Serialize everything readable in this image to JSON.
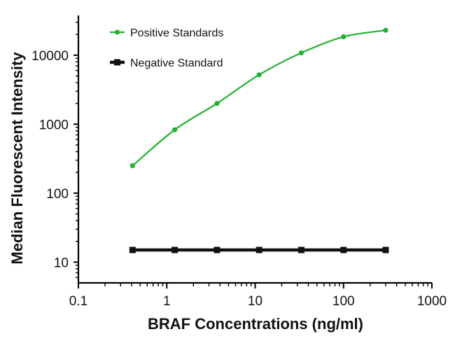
{
  "chart_data": {
    "type": "line",
    "xlabel": "BRAF Concentrations (ng/ml)",
    "ylabel": "Median Fluorescent Intensity",
    "x_scale": "log",
    "y_scale": "log",
    "xlim": [
      0.1,
      1000
    ],
    "ylim": [
      5,
      50000
    ],
    "x_ticks": [
      {
        "value": 0.1,
        "label": "0.1"
      },
      {
        "value": 1,
        "label": "1"
      },
      {
        "value": 10,
        "label": "10"
      },
      {
        "value": 100,
        "label": "100"
      },
      {
        "value": 1000,
        "label": "1000"
      }
    ],
    "y_ticks": [
      {
        "value": 10,
        "label": "10"
      },
      {
        "value": 100,
        "label": "100"
      },
      {
        "value": 1000,
        "label": "1000"
      },
      {
        "value": 10000,
        "label": "10000"
      }
    ],
    "legend_position": "top-left",
    "grid": false,
    "series": [
      {
        "name": "Positive Standards",
        "color": "#22b232",
        "marker": "circle",
        "smooth": true,
        "x": [
          0.41,
          1.23,
          3.7,
          11.1,
          33.3,
          100,
          300
        ],
        "y": [
          250,
          830,
          2000,
          5200,
          10800,
          18500,
          23000
        ]
      },
      {
        "name": "Negative Standard",
        "color": "#111111",
        "marker": "square",
        "smooth": false,
        "x": [
          0.41,
          1.23,
          3.7,
          11.1,
          33.3,
          100,
          300
        ],
        "y": [
          15,
          15,
          15,
          15,
          15,
          15,
          15
        ]
      }
    ]
  }
}
